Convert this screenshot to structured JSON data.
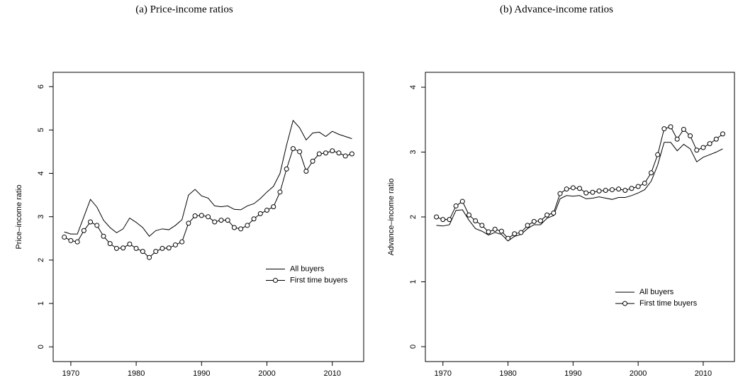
{
  "chart_data": [
    {
      "type": "line",
      "title": "(a) Price-income ratios",
      "ylabel": "Price–income ratio",
      "x": [
        1969,
        1970,
        1971,
        1972,
        1973,
        1974,
        1975,
        1976,
        1977,
        1978,
        1979,
        1980,
        1981,
        1982,
        1983,
        1984,
        1985,
        1986,
        1987,
        1988,
        1989,
        1990,
        1991,
        1992,
        1993,
        1994,
        1995,
        1996,
        1997,
        1998,
        1999,
        2000,
        2001,
        2002,
        2003,
        2004,
        2005,
        2006,
        2007,
        2008,
        2009,
        2010,
        2011,
        2012,
        2013
      ],
      "series": [
        {
          "name": "All buyers",
          "color": "#000000",
          "marker": "none",
          "values": [
            2.65,
            2.6,
            2.6,
            3.0,
            3.4,
            3.22,
            2.92,
            2.75,
            2.63,
            2.72,
            2.97,
            2.87,
            2.75,
            2.55,
            2.68,
            2.72,
            2.7,
            2.8,
            2.93,
            3.5,
            3.63,
            3.48,
            3.43,
            3.25,
            3.23,
            3.25,
            3.17,
            3.16,
            3.25,
            3.3,
            3.42,
            3.57,
            3.7,
            4.0,
            4.65,
            5.22,
            5.05,
            4.77,
            4.93,
            4.95,
            4.85,
            4.97,
            4.9,
            4.85,
            4.8
          ]
        },
        {
          "name": "First time buyers",
          "color": "#000000",
          "marker": "circle",
          "values": [
            2.53,
            2.45,
            2.42,
            2.68,
            2.88,
            2.8,
            2.55,
            2.38,
            2.27,
            2.28,
            2.37,
            2.27,
            2.2,
            2.06,
            2.2,
            2.27,
            2.28,
            2.35,
            2.42,
            2.85,
            3.02,
            3.03,
            3.0,
            2.88,
            2.92,
            2.92,
            2.75,
            2.72,
            2.8,
            2.95,
            3.07,
            3.15,
            3.23,
            3.57,
            4.1,
            4.57,
            4.5,
            4.05,
            4.28,
            4.45,
            4.47,
            4.52,
            4.47,
            4.4,
            4.45
          ]
        }
      ],
      "xlim": [
        1967.3,
        2014.8
      ],
      "xticks": [
        1970,
        1980,
        1990,
        2000,
        2010
      ],
      "ylim": [
        -0.34,
        6.33
      ],
      "yticks": [
        0,
        1,
        2,
        3,
        4,
        5,
        6
      ],
      "legend": "right"
    },
    {
      "type": "line",
      "title": "(b) Advance-income ratios",
      "ylabel": "Advance–income ratio",
      "x": [
        1969,
        1970,
        1971,
        1972,
        1973,
        1974,
        1975,
        1976,
        1977,
        1978,
        1979,
        1980,
        1981,
        1982,
        1983,
        1984,
        1985,
        1986,
        1987,
        1988,
        1989,
        1990,
        1991,
        1992,
        1993,
        1994,
        1995,
        1996,
        1997,
        1998,
        1999,
        2000,
        2001,
        2002,
        2003,
        2004,
        2005,
        2006,
        2007,
        2008,
        2009,
        2010,
        2011,
        2012,
        2013
      ],
      "series": [
        {
          "name": "All buyers",
          "color": "#000000",
          "marker": "none",
          "values": [
            1.87,
            1.86,
            1.88,
            2.1,
            2.11,
            1.95,
            1.82,
            1.78,
            1.72,
            1.76,
            1.73,
            1.63,
            1.7,
            1.73,
            1.82,
            1.88,
            1.88,
            1.98,
            2.02,
            2.28,
            2.33,
            2.32,
            2.33,
            2.28,
            2.29,
            2.31,
            2.29,
            2.27,
            2.3,
            2.3,
            2.33,
            2.37,
            2.42,
            2.55,
            2.8,
            3.15,
            3.15,
            3.02,
            3.12,
            3.05,
            2.85,
            2.92,
            2.96,
            3.0,
            3.05
          ]
        },
        {
          "name": "First time buyers",
          "color": "#000000",
          "marker": "circle",
          "values": [
            2.0,
            1.96,
            1.96,
            2.17,
            2.24,
            2.03,
            1.94,
            1.87,
            1.77,
            1.81,
            1.78,
            1.67,
            1.74,
            1.76,
            1.87,
            1.93,
            1.94,
            2.03,
            2.06,
            2.36,
            2.43,
            2.45,
            2.44,
            2.37,
            2.38,
            2.4,
            2.41,
            2.42,
            2.43,
            2.41,
            2.44,
            2.47,
            2.52,
            2.68,
            2.96,
            3.36,
            3.39,
            3.2,
            3.35,
            3.25,
            3.03,
            3.07,
            3.13,
            3.2,
            3.28
          ]
        }
      ],
      "xlim": [
        1967.3,
        2014.8
      ],
      "xticks": [
        1970,
        1980,
        1990,
        2000,
        2010
      ],
      "ylim": [
        -0.23,
        4.23
      ],
      "yticks": [
        0,
        1,
        2,
        3,
        4
      ],
      "legend": "bottomright"
    }
  ]
}
